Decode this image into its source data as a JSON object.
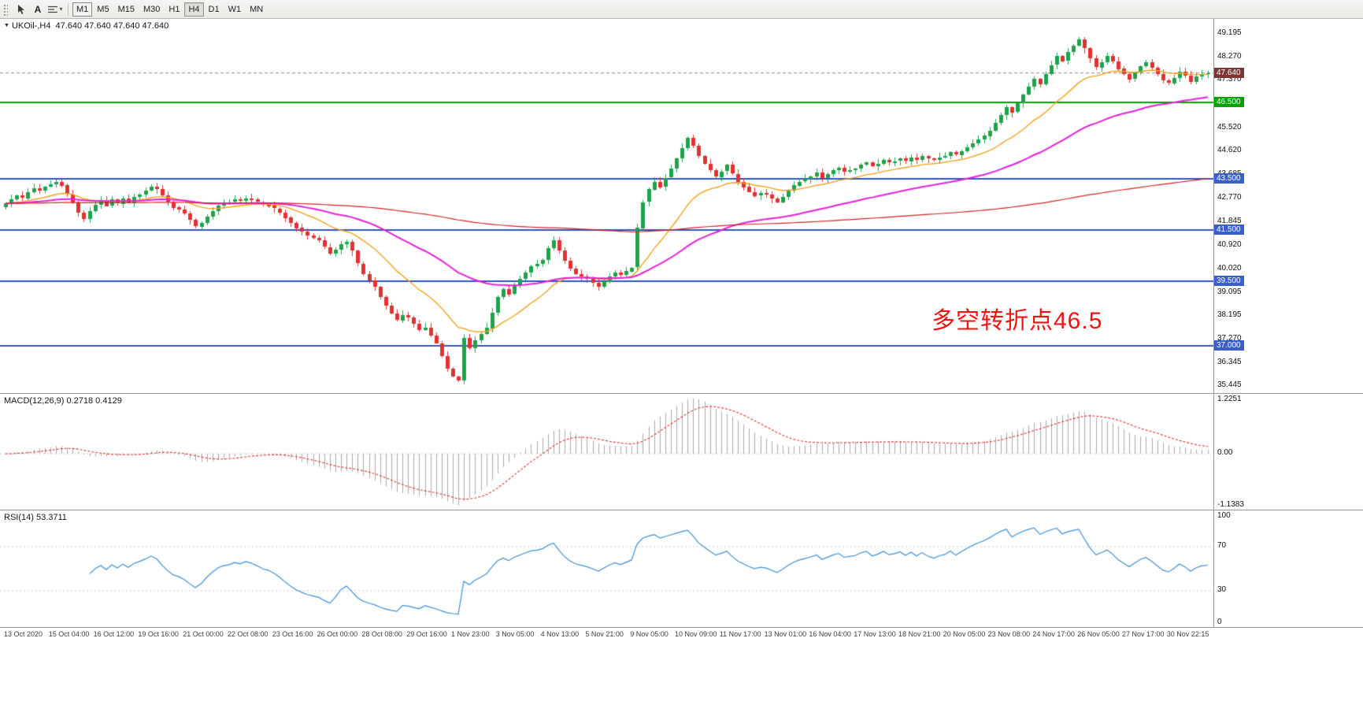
{
  "toolbar": {
    "tools": [
      {
        "id": "cursor",
        "label": ""
      },
      {
        "id": "text-label",
        "label": "A"
      },
      {
        "id": "line-style",
        "label": ""
      }
    ],
    "timeframes": [
      "M1",
      "M5",
      "M15",
      "M30",
      "H1",
      "H4",
      "D1",
      "W1",
      "MN"
    ],
    "active_timeframe": "H4",
    "outlined_timeframe": "M1"
  },
  "chart": {
    "symbol_period": "UKOil-,H4",
    "ohlc": "47.640 47.640 47.640 47.640",
    "annotation": {
      "text": "多空转折点46.5",
      "color": "#f11212"
    },
    "price_axis": [
      {
        "text": "49.195",
        "price": 49.195,
        "type": "plain"
      },
      {
        "text": "48.270",
        "price": 48.27,
        "type": "plain"
      },
      {
        "text": "47.640",
        "price": 47.64,
        "type": "current"
      },
      {
        "text": "47.370",
        "price": 47.37,
        "type": "plain"
      },
      {
        "text": "46.500",
        "price": 46.5,
        "type": "green"
      },
      {
        "text": "45.520",
        "price": 45.52,
        "type": "plain"
      },
      {
        "text": "44.620",
        "price": 44.62,
        "type": "plain"
      },
      {
        "text": "43.685",
        "price": 43.685,
        "type": "plain"
      },
      {
        "text": "43.500",
        "price": 43.5,
        "type": "blue"
      },
      {
        "text": "42.770",
        "price": 42.77,
        "type": "plain"
      },
      {
        "text": "41.845",
        "price": 41.845,
        "type": "plain"
      },
      {
        "text": "41.500",
        "price": 41.5,
        "type": "blue"
      },
      {
        "text": "40.920",
        "price": 40.92,
        "type": "plain"
      },
      {
        "text": "40.020",
        "price": 40.02,
        "type": "plain"
      },
      {
        "text": "39.500",
        "price": 39.5,
        "type": "blue"
      },
      {
        "text": "39.095",
        "price": 39.095,
        "type": "plain"
      },
      {
        "text": "38.195",
        "price": 38.195,
        "type": "plain"
      },
      {
        "text": "37.270",
        "price": 37.27,
        "type": "plain"
      },
      {
        "text": "37.000",
        "price": 37.0,
        "type": "blue"
      },
      {
        "text": "36.345",
        "price": 36.345,
        "type": "plain"
      },
      {
        "text": "35.445",
        "price": 35.445,
        "type": "plain"
      }
    ],
    "colors": {
      "up": "#1ea34c",
      "down": "#e03232",
      "ma_fast": "#f2a21c",
      "ma_mid": "#e322d8",
      "ma_slow": "#d42222",
      "level_blue": "#2f55c0",
      "level_green": "#00a300",
      "current_price_line": "#9a8080",
      "current_price_badge": "#7e3535"
    }
  },
  "macd_panel": {
    "header": "MACD(12,26,9) 0.2718 0.4129",
    "axis": [
      {
        "text": "1.2251",
        "value": 1.2251
      },
      {
        "text": "0.00",
        "value": 0
      },
      {
        "text": "-1.1383",
        "value": -1.1383
      }
    ],
    "histogram_color": "#a9a9a9",
    "signal_color": "#e03232",
    "grid_color": "#c8c8c8"
  },
  "rsi_panel": {
    "header": "RSI(14) 53.3711",
    "axis": [
      {
        "text": "100",
        "value": 100
      },
      {
        "text": "70",
        "value": 70
      },
      {
        "text": "30",
        "value": 30
      },
      {
        "text": "0",
        "value": 0
      }
    ],
    "line_color": "#3b8fd4",
    "levels": [
      70,
      30
    ],
    "grid_color": "#c8c8c8"
  },
  "time_axis": [
    "13 Oct 2020",
    "15 Oct 04:00",
    "16 Oct 12:00",
    "19 Oct 16:00",
    "21 Oct 00:00",
    "22 Oct 08:00",
    "23 Oct 16:00",
    "26 Oct 00:00",
    "28 Oct 08:00",
    "29 Oct 16:00",
    "1 Nov 23:00",
    "3 Nov 05:00",
    "4 Nov 13:00",
    "5 Nov 21:00",
    "9 Nov 05:00",
    "10 Nov 09:00",
    "11 Nov 17:00",
    "13 Nov 01:00",
    "16 Nov 04:00",
    "17 Nov 13:00",
    "18 Nov 21:00",
    "20 Nov 05:00",
    "23 Nov 08:00",
    "24 Nov 17:00",
    "26 Nov 05:00",
    "27 Nov 17:00",
    "30 Nov 22:15"
  ],
  "chart_data": {
    "type": "candlestick",
    "symbol": "UKOil-",
    "timeframe": "H4",
    "price_range": [
      35.15,
      49.75
    ],
    "levels": {
      "green": [
        46.5
      ],
      "blue": [
        43.5,
        41.5,
        39.5,
        37.0
      ],
      "current": 47.64
    },
    "moving_averages": [
      {
        "name": "fast",
        "type": "ema",
        "period": 18
      },
      {
        "name": "mid",
        "type": "ema",
        "period": 55
      },
      {
        "name": "slow",
        "type": "ema",
        "period": 300
      }
    ],
    "indicators": {
      "macd": {
        "fast": 12,
        "slow": 26,
        "signal": 9,
        "display_max": 1.2251,
        "display_min": -1.1383,
        "last_values": "0.2718 0.4129"
      },
      "rsi": {
        "period": 14,
        "last_value": "53.3711",
        "range": [
          0,
          100
        ]
      }
    },
    "closes": [
      42.55,
      42.7,
      42.85,
      42.75,
      43.0,
      43.15,
      43.05,
      43.2,
      43.3,
      43.4,
      43.25,
      42.9,
      42.6,
      42.2,
      41.95,
      42.25,
      42.5,
      42.65,
      42.45,
      42.7,
      42.55,
      42.75,
      42.6,
      42.8,
      42.9,
      43.05,
      43.2,
      43.1,
      42.85,
      42.6,
      42.4,
      42.3,
      42.15,
      41.9,
      41.65,
      41.8,
      42.05,
      42.25,
      42.45,
      42.55,
      42.6,
      42.7,
      42.65,
      42.75,
      42.7,
      42.6,
      42.5,
      42.45,
      42.35,
      42.2,
      42.0,
      41.8,
      41.6,
      41.45,
      41.3,
      41.2,
      41.1,
      40.85,
      40.6,
      40.75,
      40.95,
      41.05,
      40.7,
      40.2,
      39.8,
      39.55,
      39.3,
      38.9,
      38.55,
      38.25,
      38.0,
      38.2,
      38.1,
      37.85,
      37.6,
      37.7,
      37.4,
      37.1,
      36.6,
      36.1,
      35.8,
      35.65,
      37.3,
      36.9,
      37.2,
      37.45,
      37.7,
      38.3,
      38.9,
      39.2,
      39.0,
      39.35,
      39.6,
      39.85,
      40.1,
      40.2,
      40.35,
      40.8,
      41.1,
      40.7,
      40.3,
      40.0,
      39.8,
      39.7,
      39.6,
      39.45,
      39.3,
      39.5,
      39.7,
      39.85,
      39.75,
      39.9,
      40.05,
      41.6,
      42.6,
      43.1,
      43.4,
      43.2,
      43.55,
      43.9,
      44.3,
      44.7,
      45.1,
      44.8,
      44.4,
      44.1,
      43.85,
      43.6,
      43.8,
      44.05,
      43.7,
      43.4,
      43.2,
      43.0,
      42.85,
      42.95,
      42.9,
      42.75,
      42.6,
      42.8,
      43.05,
      43.25,
      43.4,
      43.5,
      43.6,
      43.75,
      43.55,
      43.7,
      43.85,
      43.95,
      43.8,
      43.85,
      43.9,
      44.05,
      44.15,
      44.0,
      44.1,
      44.25,
      44.15,
      44.2,
      44.3,
      44.2,
      44.35,
      44.25,
      44.4,
      44.3,
      44.25,
      44.35,
      44.4,
      44.55,
      44.45,
      44.6,
      44.75,
      44.9,
      45.05,
      45.2,
      45.4,
      45.7,
      46.0,
      46.3,
      46.1,
      46.45,
      46.8,
      47.1,
      47.4,
      47.2,
      47.6,
      47.95,
      48.3,
      48.1,
      48.45,
      48.7,
      48.95,
      48.6,
      48.2,
      47.85,
      48.05,
      48.3,
      48.1,
      47.8,
      47.6,
      47.4,
      47.65,
      47.9,
      48.05,
      47.85,
      47.6,
      47.35,
      47.25,
      47.45,
      47.7,
      47.55,
      47.3,
      47.5,
      47.6,
      47.64
    ]
  }
}
